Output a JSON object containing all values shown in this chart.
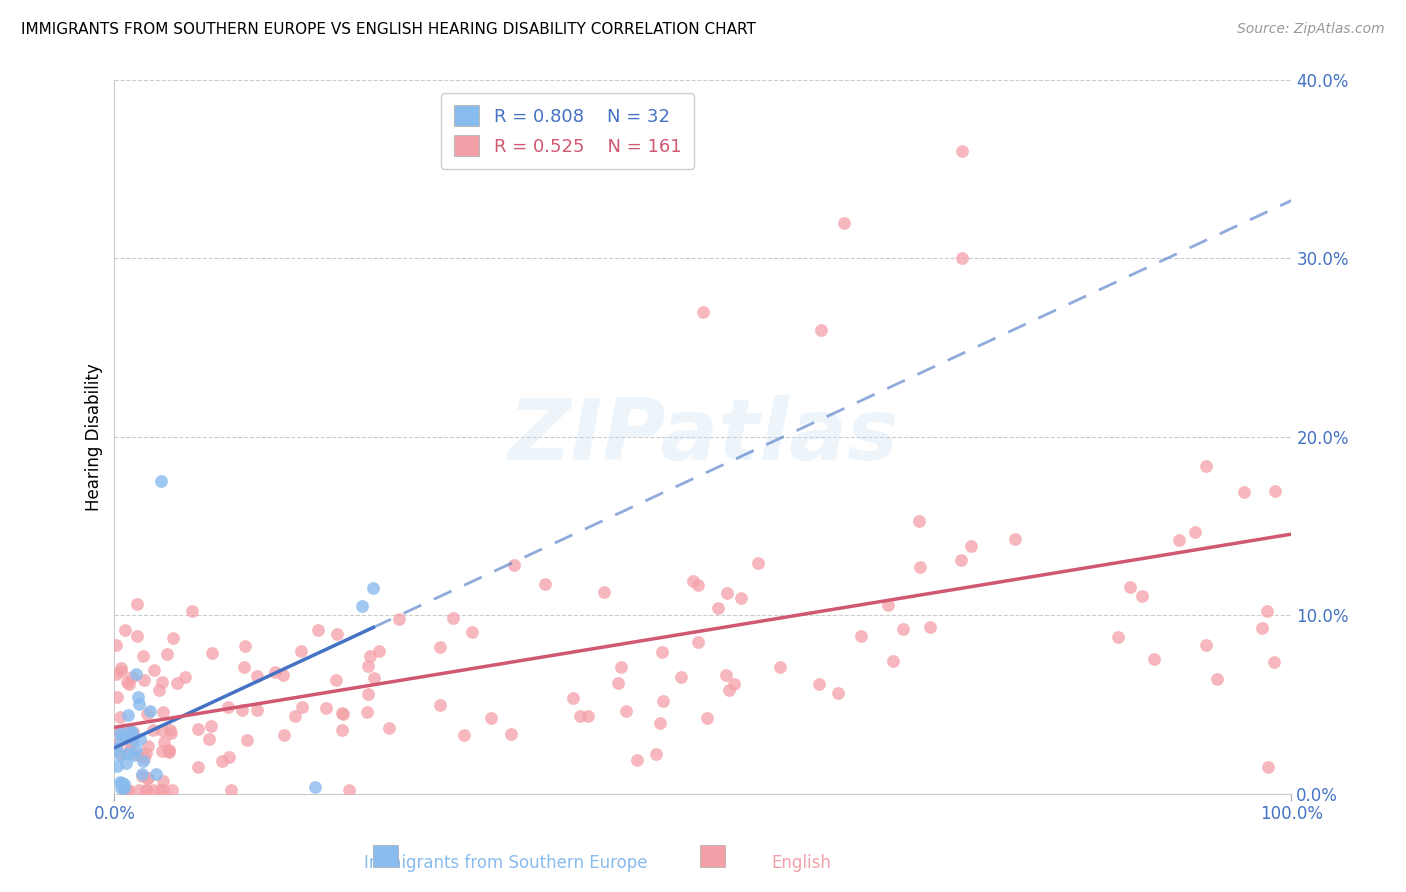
{
  "title": "IMMIGRANTS FROM SOUTHERN EUROPE VS ENGLISH HEARING DISABILITY CORRELATION CHART",
  "source": "Source: ZipAtlas.com",
  "xlabel_blue": "Immigrants from Southern Europe",
  "xlabel_pink": "English",
  "ylabel": "Hearing Disability",
  "xlim": [
    0,
    1.0
  ],
  "ylim": [
    0,
    0.4
  ],
  "yticks": [
    0.0,
    0.1,
    0.2,
    0.3,
    0.4
  ],
  "ytick_labels": [
    "0.0%",
    "10.0%",
    "20.0%",
    "30.0%",
    "40.0%"
  ],
  "blue_color": "#88bbee",
  "pink_color": "#f4a0a8",
  "blue_line_color": "#4472c4",
  "pink_line_color": "#d05870",
  "R_blue": 0.808,
  "N_blue": 32,
  "R_pink": 0.525,
  "N_pink": 161,
  "title_fontsize": 11,
  "source_fontsize": 10,
  "tick_fontsize": 12,
  "ylabel_fontsize": 12,
  "legend_fontsize": 13,
  "blue_seed": 42,
  "pink_seed": 99
}
